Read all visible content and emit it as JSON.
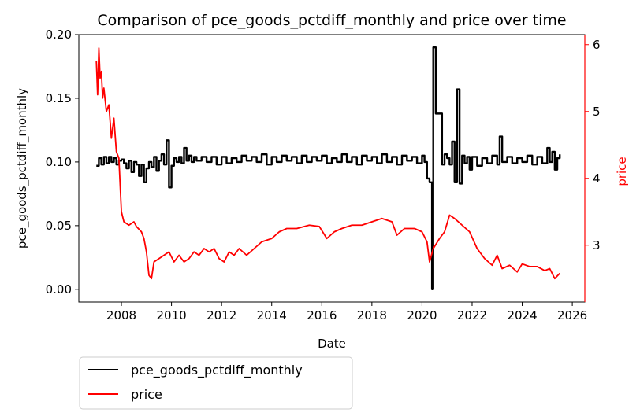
{
  "chart_data": {
    "type": "line",
    "title": "Comparison of pce_goods_pctdiff_monthly and price over time",
    "xlabel": "Date",
    "ylabel_left": "pce_goods_pctdiff_monthly",
    "ylabel_right": "price",
    "xlim": [
      2006.3,
      2026.5
    ],
    "ylim_left": [
      -0.01,
      0.2
    ],
    "ylim_right": [
      2.15,
      6.15
    ],
    "x_ticks": [
      2008,
      2010,
      2012,
      2014,
      2016,
      2018,
      2020,
      2022,
      2024,
      2026
    ],
    "y_left_ticks": [
      "0.00",
      "0.05",
      "0.10",
      "0.15",
      "0.20"
    ],
    "y_right_ticks": [
      "3",
      "4",
      "5",
      "6"
    ],
    "legend_position": "below-left",
    "grid": false,
    "series": [
      {
        "name": "pce_goods_pctdiff_monthly",
        "axis": "left",
        "color": "#000000",
        "points": [
          [
            2007.0,
            0.097
          ],
          [
            2007.1,
            0.103
          ],
          [
            2007.2,
            0.098
          ],
          [
            2007.3,
            0.104
          ],
          [
            2007.4,
            0.099
          ],
          [
            2007.5,
            0.104
          ],
          [
            2007.6,
            0.1
          ],
          [
            2007.7,
            0.103
          ],
          [
            2007.8,
            0.098
          ],
          [
            2007.9,
            0.101
          ],
          [
            2008.0,
            0.102
          ],
          [
            2008.1,
            0.099
          ],
          [
            2008.2,
            0.095
          ],
          [
            2008.3,
            0.101
          ],
          [
            2008.4,
            0.092
          ],
          [
            2008.5,
            0.1
          ],
          [
            2008.6,
            0.098
          ],
          [
            2008.7,
            0.089
          ],
          [
            2008.8,
            0.098
          ],
          [
            2008.9,
            0.084
          ],
          [
            2009.0,
            0.095
          ],
          [
            2009.1,
            0.1
          ],
          [
            2009.2,
            0.096
          ],
          [
            2009.3,
            0.104
          ],
          [
            2009.4,
            0.093
          ],
          [
            2009.5,
            0.101
          ],
          [
            2009.6,
            0.106
          ],
          [
            2009.7,
            0.098
          ],
          [
            2009.8,
            0.117
          ],
          [
            2009.9,
            0.08
          ],
          [
            2010.0,
            0.097
          ],
          [
            2010.1,
            0.103
          ],
          [
            2010.2,
            0.1
          ],
          [
            2010.3,
            0.104
          ],
          [
            2010.4,
            0.099
          ],
          [
            2010.5,
            0.111
          ],
          [
            2010.6,
            0.101
          ],
          [
            2010.7,
            0.105
          ],
          [
            2010.8,
            0.1
          ],
          [
            2010.9,
            0.104
          ],
          [
            2011.0,
            0.101
          ],
          [
            2011.2,
            0.104
          ],
          [
            2011.4,
            0.1
          ],
          [
            2011.6,
            0.104
          ],
          [
            2011.8,
            0.098
          ],
          [
            2012.0,
            0.104
          ],
          [
            2012.2,
            0.099
          ],
          [
            2012.4,
            0.103
          ],
          [
            2012.6,
            0.1
          ],
          [
            2012.8,
            0.105
          ],
          [
            2013.0,
            0.101
          ],
          [
            2013.2,
            0.104
          ],
          [
            2013.4,
            0.1
          ],
          [
            2013.6,
            0.106
          ],
          [
            2013.8,
            0.098
          ],
          [
            2014.0,
            0.104
          ],
          [
            2014.2,
            0.1
          ],
          [
            2014.4,
            0.105
          ],
          [
            2014.6,
            0.101
          ],
          [
            2014.8,
            0.104
          ],
          [
            2015.0,
            0.099
          ],
          [
            2015.2,
            0.105
          ],
          [
            2015.4,
            0.1
          ],
          [
            2015.6,
            0.104
          ],
          [
            2015.8,
            0.101
          ],
          [
            2016.0,
            0.105
          ],
          [
            2016.2,
            0.099
          ],
          [
            2016.4,
            0.103
          ],
          [
            2016.6,
            0.1
          ],
          [
            2016.8,
            0.106
          ],
          [
            2017.0,
            0.1
          ],
          [
            2017.2,
            0.104
          ],
          [
            2017.4,
            0.098
          ],
          [
            2017.6,
            0.105
          ],
          [
            2017.8,
            0.101
          ],
          [
            2018.0,
            0.104
          ],
          [
            2018.2,
            0.099
          ],
          [
            2018.4,
            0.106
          ],
          [
            2018.6,
            0.1
          ],
          [
            2018.8,
            0.104
          ],
          [
            2019.0,
            0.098
          ],
          [
            2019.2,
            0.105
          ],
          [
            2019.4,
            0.101
          ],
          [
            2019.6,
            0.104
          ],
          [
            2019.8,
            0.099
          ],
          [
            2020.0,
            0.105
          ],
          [
            2020.1,
            0.1
          ],
          [
            2020.2,
            0.087
          ],
          [
            2020.3,
            0.084
          ],
          [
            2020.4,
            0.0
          ],
          [
            2020.45,
            0.19
          ],
          [
            2020.55,
            0.138
          ],
          [
            2020.7,
            0.138
          ],
          [
            2020.8,
            0.098
          ],
          [
            2020.9,
            0.106
          ],
          [
            2021.0,
            0.103
          ],
          [
            2021.1,
            0.098
          ],
          [
            2021.2,
            0.116
          ],
          [
            2021.3,
            0.084
          ],
          [
            2021.4,
            0.157
          ],
          [
            2021.5,
            0.083
          ],
          [
            2021.6,
            0.105
          ],
          [
            2021.7,
            0.099
          ],
          [
            2021.8,
            0.104
          ],
          [
            2021.9,
            0.094
          ],
          [
            2022.0,
            0.104
          ],
          [
            2022.2,
            0.097
          ],
          [
            2022.4,
            0.103
          ],
          [
            2022.6,
            0.099
          ],
          [
            2022.8,
            0.105
          ],
          [
            2023.0,
            0.098
          ],
          [
            2023.1,
            0.12
          ],
          [
            2023.2,
            0.1
          ],
          [
            2023.4,
            0.104
          ],
          [
            2023.6,
            0.099
          ],
          [
            2023.8,
            0.103
          ],
          [
            2024.0,
            0.1
          ],
          [
            2024.2,
            0.105
          ],
          [
            2024.4,
            0.098
          ],
          [
            2024.6,
            0.104
          ],
          [
            2024.8,
            0.099
          ],
          [
            2025.0,
            0.111
          ],
          [
            2025.1,
            0.1
          ],
          [
            2025.2,
            0.108
          ],
          [
            2025.3,
            0.094
          ],
          [
            2025.4,
            0.103
          ],
          [
            2025.5,
            0.106
          ]
        ]
      },
      {
        "name": "price",
        "axis": "right",
        "color": "#ff0000",
        "points": [
          [
            2007.0,
            5.75
          ],
          [
            2007.05,
            5.25
          ],
          [
            2007.1,
            5.95
          ],
          [
            2007.15,
            5.5
          ],
          [
            2007.2,
            5.6
          ],
          [
            2007.25,
            5.2
          ],
          [
            2007.3,
            5.35
          ],
          [
            2007.4,
            5.0
          ],
          [
            2007.5,
            5.1
          ],
          [
            2007.6,
            4.6
          ],
          [
            2007.7,
            4.9
          ],
          [
            2007.8,
            4.4
          ],
          [
            2007.9,
            4.3
          ],
          [
            2008.0,
            3.5
          ],
          [
            2008.1,
            3.35
          ],
          [
            2008.3,
            3.3
          ],
          [
            2008.5,
            3.35
          ],
          [
            2008.6,
            3.28
          ],
          [
            2008.8,
            3.2
          ],
          [
            2008.9,
            3.1
          ],
          [
            2009.0,
            2.9
          ],
          [
            2009.1,
            2.55
          ],
          [
            2009.2,
            2.5
          ],
          [
            2009.3,
            2.75
          ],
          [
            2009.5,
            2.8
          ],
          [
            2009.7,
            2.85
          ],
          [
            2009.9,
            2.9
          ],
          [
            2010.1,
            2.75
          ],
          [
            2010.3,
            2.85
          ],
          [
            2010.5,
            2.75
          ],
          [
            2010.7,
            2.8
          ],
          [
            2010.9,
            2.9
          ],
          [
            2011.1,
            2.85
          ],
          [
            2011.3,
            2.95
          ],
          [
            2011.5,
            2.9
          ],
          [
            2011.7,
            2.95
          ],
          [
            2011.9,
            2.8
          ],
          [
            2012.1,
            2.75
          ],
          [
            2012.3,
            2.9
          ],
          [
            2012.5,
            2.85
          ],
          [
            2012.7,
            2.95
          ],
          [
            2013.0,
            2.85
          ],
          [
            2013.3,
            2.95
          ],
          [
            2013.6,
            3.05
          ],
          [
            2014.0,
            3.1
          ],
          [
            2014.3,
            3.2
          ],
          [
            2014.6,
            3.25
          ],
          [
            2015.0,
            3.25
          ],
          [
            2015.5,
            3.3
          ],
          [
            2015.9,
            3.28
          ],
          [
            2016.2,
            3.1
          ],
          [
            2016.5,
            3.2
          ],
          [
            2016.8,
            3.25
          ],
          [
            2017.2,
            3.3
          ],
          [
            2017.6,
            3.3
          ],
          [
            2018.0,
            3.35
          ],
          [
            2018.4,
            3.4
          ],
          [
            2018.8,
            3.35
          ],
          [
            2019.0,
            3.15
          ],
          [
            2019.3,
            3.25
          ],
          [
            2019.7,
            3.25
          ],
          [
            2020.0,
            3.2
          ],
          [
            2020.2,
            3.05
          ],
          [
            2020.3,
            2.75
          ],
          [
            2020.45,
            2.95
          ],
          [
            2020.7,
            3.1
          ],
          [
            2020.9,
            3.2
          ],
          [
            2021.1,
            3.45
          ],
          [
            2021.3,
            3.4
          ],
          [
            2021.6,
            3.3
          ],
          [
            2021.9,
            3.2
          ],
          [
            2022.2,
            2.95
          ],
          [
            2022.5,
            2.8
          ],
          [
            2022.8,
            2.7
          ],
          [
            2023.0,
            2.85
          ],
          [
            2023.2,
            2.65
          ],
          [
            2023.5,
            2.7
          ],
          [
            2023.8,
            2.6
          ],
          [
            2024.0,
            2.72
          ],
          [
            2024.3,
            2.68
          ],
          [
            2024.6,
            2.68
          ],
          [
            2024.9,
            2.62
          ],
          [
            2025.1,
            2.65
          ],
          [
            2025.3,
            2.5
          ],
          [
            2025.5,
            2.58
          ]
        ]
      }
    ]
  }
}
